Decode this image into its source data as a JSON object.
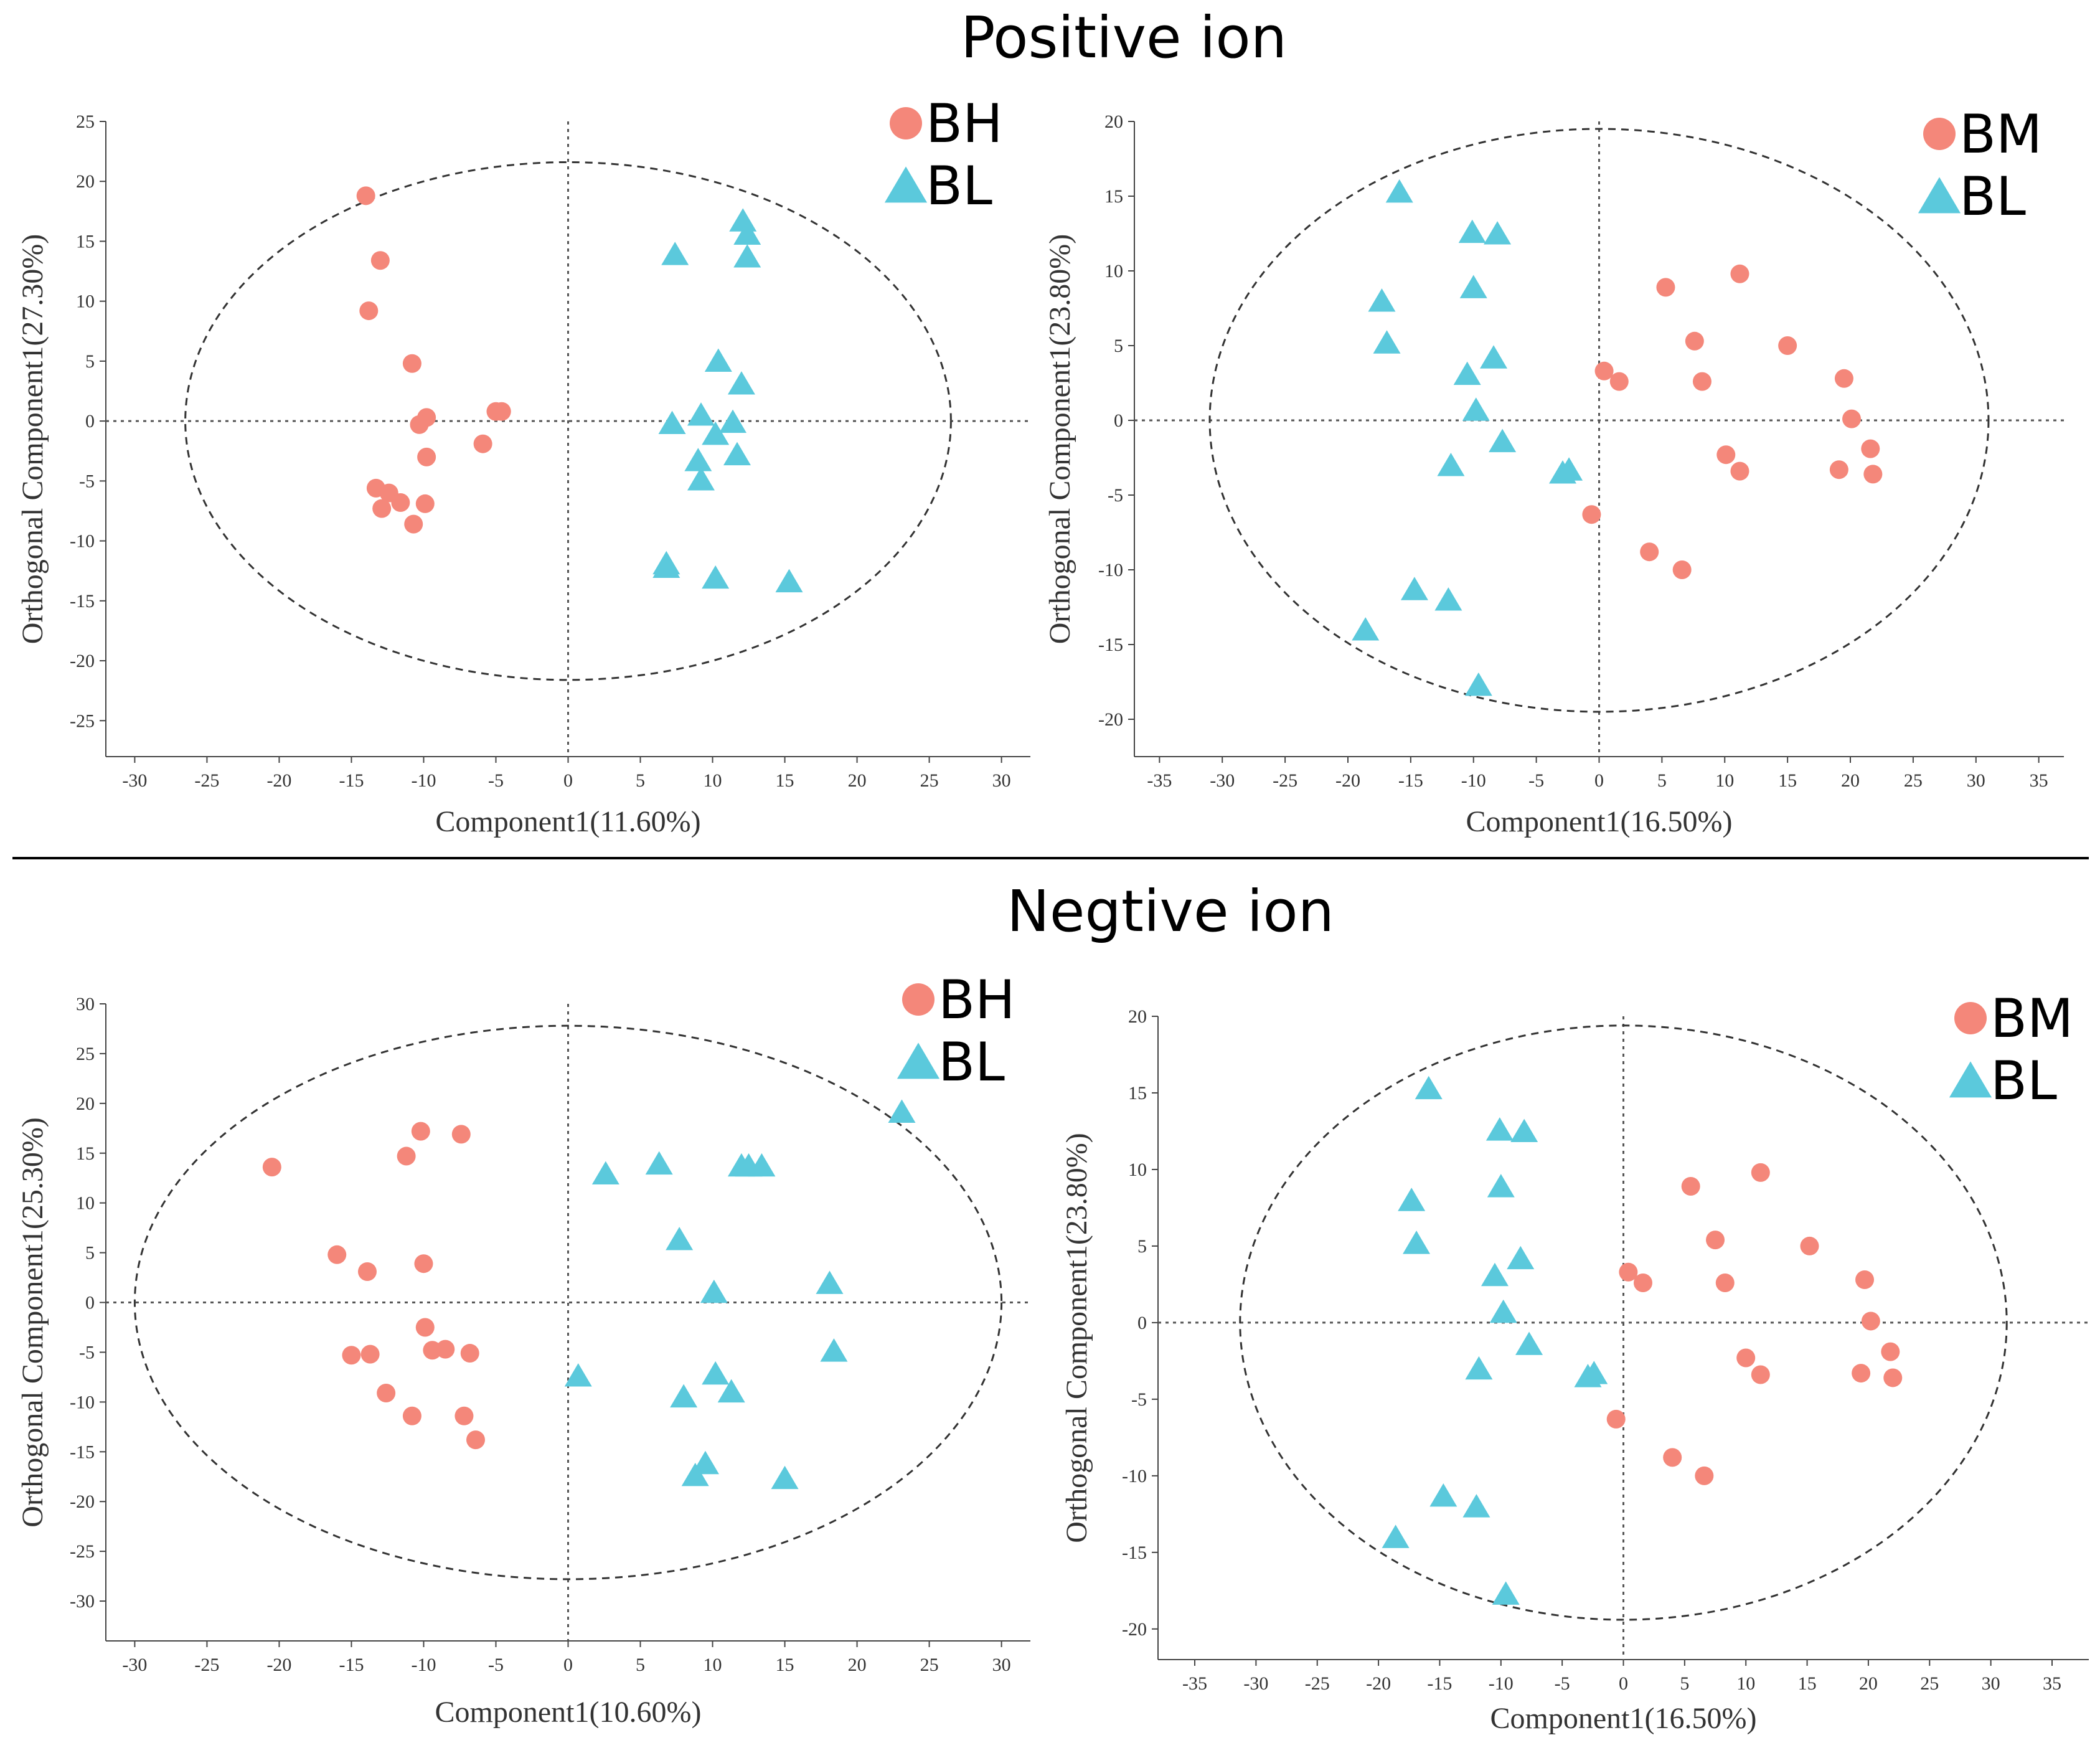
{
  "sections": {
    "positive_title": "Positive ion",
    "negative_title": "Negtive ion"
  },
  "colors": {
    "group_a": "#F4877A",
    "group_b": "#5BC9DC"
  },
  "chart_data": [
    {
      "type": "scatter",
      "id": "pos-bh-bl",
      "xlabel": "Component1(11.60%)",
      "ylabel": "Orthogonal Component1(27.30%)",
      "xlim": [
        -32,
        32
      ],
      "ylim": [
        -28,
        25
      ],
      "xticks": [
        -30,
        -25,
        -20,
        -15,
        -10,
        -5,
        0,
        5,
        10,
        15,
        20,
        25,
        30
      ],
      "yticks": [
        -25,
        -20,
        -15,
        -10,
        -5,
        0,
        5,
        10,
        15,
        20,
        25
      ],
      "ellipse": {
        "rx": 26.5,
        "ry": 21.6
      },
      "legend": [
        "BH",
        "BL"
      ],
      "series": [
        {
          "name": "BH",
          "marker": "circle",
          "points": [
            [
              -14,
              18.8
            ],
            [
              -13,
              13.4
            ],
            [
              -13.8,
              9.2
            ],
            [
              -10.8,
              4.8
            ],
            [
              -9.8,
              0.3
            ],
            [
              -10.3,
              -0.3
            ],
            [
              -5,
              0.8
            ],
            [
              -4.6,
              0.8
            ],
            [
              -5.9,
              -1.9
            ],
            [
              -9.8,
              -3
            ],
            [
              -13.3,
              -5.6
            ],
            [
              -12.4,
              -6
            ],
            [
              -11.6,
              -6.8
            ],
            [
              -12.9,
              -7.3
            ],
            [
              -9.9,
              -6.9
            ],
            [
              -10.7,
              -8.6
            ]
          ]
        },
        {
          "name": "BL",
          "marker": "triangle",
          "points": [
            [
              12.1,
              16.6
            ],
            [
              12.4,
              15.5
            ],
            [
              12.4,
              13.6
            ],
            [
              7.4,
              13.8
            ],
            [
              10.4,
              4.9
            ],
            [
              12,
              3
            ],
            [
              9.2,
              0.4
            ],
            [
              7.2,
              -0.3
            ],
            [
              10.2,
              -1.2
            ],
            [
              11.4,
              -0.2
            ],
            [
              9,
              -3.4
            ],
            [
              11.7,
              -2.9
            ],
            [
              9.2,
              -5
            ],
            [
              6.8,
              -12
            ],
            [
              6.8,
              -12.3
            ],
            [
              10.2,
              -13.2
            ],
            [
              15.3,
              -13.5
            ]
          ]
        }
      ]
    },
    {
      "type": "scatter",
      "id": "pos-bm-bl",
      "xlabel": "Component1(16.50%)",
      "ylabel": "Orthogonal Component1(23.80%)",
      "xlim": [
        -37,
        37
      ],
      "ylim": [
        -22.5,
        20
      ],
      "xticks": [
        -35,
        -30,
        -25,
        -20,
        -15,
        -10,
        -5,
        0,
        5,
        10,
        15,
        20,
        25,
        30,
        35
      ],
      "yticks": [
        -20,
        -15,
        -10,
        -5,
        0,
        5,
        10,
        15,
        20
      ],
      "ellipse": {
        "rx": 31,
        "ry": 19.5
      },
      "legend": [
        "BM",
        "BL"
      ],
      "series": [
        {
          "name": "BM",
          "marker": "circle",
          "points": [
            [
              5.3,
              8.9
            ],
            [
              11.2,
              9.8
            ],
            [
              7.6,
              5.3
            ],
            [
              15,
              5
            ],
            [
              19.5,
              2.8
            ],
            [
              0.4,
              3.3
            ],
            [
              1.6,
              2.6
            ],
            [
              8.2,
              2.6
            ],
            [
              20.1,
              0.1
            ],
            [
              21.6,
              -1.9
            ],
            [
              10.1,
              -2.3
            ],
            [
              11.2,
              -3.4
            ],
            [
              19.1,
              -3.3
            ],
            [
              21.8,
              -3.6
            ],
            [
              -0.6,
              -6.3
            ],
            [
              4,
              -8.8
            ],
            [
              6.6,
              -10
            ]
          ]
        },
        {
          "name": "BL",
          "marker": "triangle",
          "points": [
            [
              -15.9,
              15.2
            ],
            [
              -10.1,
              12.5
            ],
            [
              -8.1,
              12.4
            ],
            [
              -10,
              8.8
            ],
            [
              -17.3,
              7.9
            ],
            [
              -16.9,
              5.1
            ],
            [
              -8.4,
              4.1
            ],
            [
              -10.5,
              3
            ],
            [
              -9.8,
              0.6
            ],
            [
              -7.7,
              -1.5
            ],
            [
              -11.8,
              -3.1
            ],
            [
              -2.9,
              -3.6
            ],
            [
              -2.4,
              -3.4
            ],
            [
              -14.7,
              -11.4
            ],
            [
              -12,
              -12.1
            ],
            [
              -18.6,
              -14.1
            ],
            [
              -9.6,
              -17.8
            ]
          ]
        }
      ]
    },
    {
      "type": "scatter",
      "id": "neg-bh-bl",
      "xlabel": "Component1(10.60%)",
      "ylabel": "Orthogonal Component1(25.30%)",
      "xlim": [
        -32,
        32
      ],
      "ylim": [
        -34,
        30
      ],
      "xticks": [
        -30,
        -25,
        -20,
        -15,
        -10,
        -5,
        0,
        5,
        10,
        15,
        20,
        25,
        30
      ],
      "yticks": [
        -30,
        -25,
        -20,
        -15,
        -10,
        -5,
        0,
        5,
        10,
        15,
        20,
        25,
        30
      ],
      "ellipse": {
        "rx": 30,
        "ry": 27.8
      },
      "legend": [
        "BH",
        "BL"
      ],
      "series": [
        {
          "name": "BH",
          "marker": "circle",
          "points": [
            [
              -20.5,
              13.6
            ],
            [
              -10.2,
              17.2
            ],
            [
              -7.4,
              16.9
            ],
            [
              -11.2,
              14.7
            ],
            [
              -16,
              4.8
            ],
            [
              -13.9,
              3.1
            ],
            [
              -10,
              3.9
            ],
            [
              -9.9,
              -2.5
            ],
            [
              -15,
              -5.3
            ],
            [
              -13.7,
              -5.2
            ],
            [
              -9.4,
              -4.8
            ],
            [
              -8.5,
              -4.7
            ],
            [
              -6.8,
              -5.1
            ],
            [
              -12.6,
              -9.1
            ],
            [
              -10.8,
              -11.4
            ],
            [
              -7.2,
              -11.4
            ],
            [
              -6.4,
              -13.8
            ]
          ]
        },
        {
          "name": "BL",
          "marker": "triangle",
          "points": [
            [
              23.1,
              19
            ],
            [
              2.6,
              12.8
            ],
            [
              6.3,
              13.8
            ],
            [
              12,
              13.6
            ],
            [
              12.5,
              13.6
            ],
            [
              13.4,
              13.6
            ],
            [
              7.7,
              6.2
            ],
            [
              18.1,
              1.8
            ],
            [
              10.1,
              0.9
            ],
            [
              18.4,
              -5
            ],
            [
              0.7,
              -7.5
            ],
            [
              10.2,
              -7.3
            ],
            [
              8,
              -9.6
            ],
            [
              11.3,
              -9.1
            ],
            [
              9.5,
              -16.3
            ],
            [
              8.8,
              -17.5
            ],
            [
              15,
              -17.8
            ]
          ]
        }
      ]
    },
    {
      "type": "scatter",
      "id": "neg-bm-bl",
      "xlabel": "Component1(16.50%)",
      "ylabel": "Orthogonal Component1(23.80%)",
      "xlim": [
        -38,
        38
      ],
      "ylim": [
        -22,
        20
      ],
      "xticks": [
        -35,
        -30,
        -25,
        -20,
        -15,
        -10,
        -5,
        0,
        5,
        10,
        15,
        20,
        25,
        30,
        35
      ],
      "yticks": [
        -20,
        -15,
        -10,
        -5,
        0,
        5,
        10,
        15,
        20
      ],
      "ellipse": {
        "rx": 31.3,
        "ry": 19.4
      },
      "legend": [
        "BM",
        "BL"
      ],
      "series": [
        {
          "name": "BM",
          "marker": "circle",
          "points": [
            [
              5.5,
              8.9
            ],
            [
              11.2,
              9.8
            ],
            [
              7.5,
              5.4
            ],
            [
              15.2,
              5
            ],
            [
              19.7,
              2.8
            ],
            [
              0.4,
              3.3
            ],
            [
              1.6,
              2.6
            ],
            [
              8.3,
              2.6
            ],
            [
              20.2,
              0.1
            ],
            [
              21.8,
              -1.9
            ],
            [
              10,
              -2.3
            ],
            [
              11.2,
              -3.4
            ],
            [
              19.4,
              -3.3
            ],
            [
              22,
              -3.6
            ],
            [
              -0.6,
              -6.3
            ],
            [
              4,
              -8.8
            ],
            [
              6.6,
              -10
            ]
          ]
        },
        {
          "name": "BL",
          "marker": "triangle",
          "points": [
            [
              -15.9,
              15.2
            ],
            [
              -10.1,
              12.5
            ],
            [
              -8.1,
              12.4
            ],
            [
              -10,
              8.8
            ],
            [
              -17.3,
              7.9
            ],
            [
              -16.9,
              5.1
            ],
            [
              -8.4,
              4.1
            ],
            [
              -10.5,
              3
            ],
            [
              -9.8,
              0.6
            ],
            [
              -7.7,
              -1.5
            ],
            [
              -11.8,
              -3.1
            ],
            [
              -2.9,
              -3.6
            ],
            [
              -2.4,
              -3.4
            ],
            [
              -14.7,
              -11.4
            ],
            [
              -12,
              -12.1
            ],
            [
              -18.6,
              -14.1
            ],
            [
              -9.6,
              -17.8
            ]
          ]
        }
      ]
    }
  ]
}
